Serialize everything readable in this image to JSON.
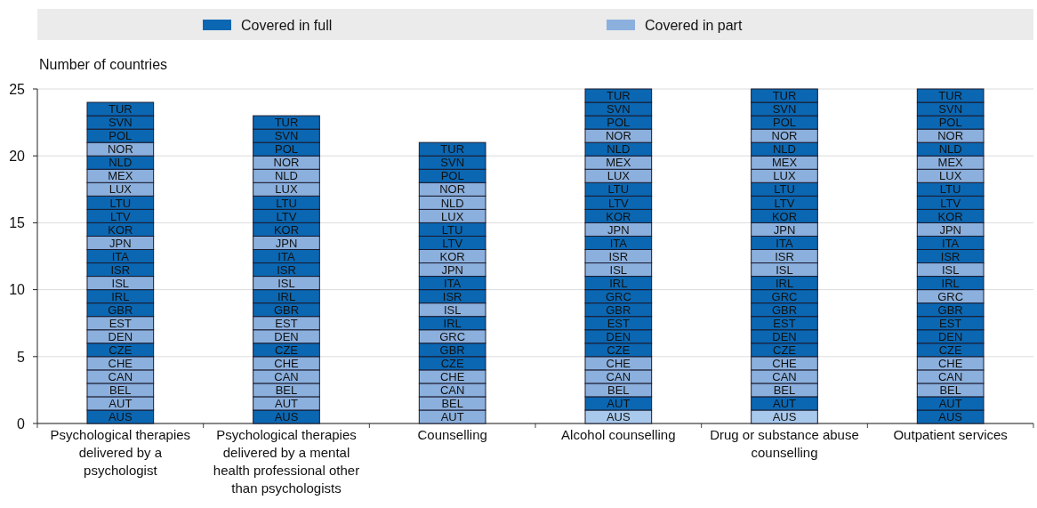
{
  "chart_data": {
    "type": "bar",
    "stacked": true,
    "ylabel": "Number of countries",
    "legend": "top",
    "grid": "y",
    "ylim": [
      0,
      25
    ],
    "yticks": [
      0,
      5,
      10,
      15,
      20,
      25
    ],
    "categories": [
      "Psychological therapies delivered by a psychologist",
      "Psychological therapies delivered by a mental health professional other than psychologists",
      "Counselling",
      "Alcohol counselling",
      "Drug or substance abuse counselling",
      "Outpatient services"
    ],
    "series": [
      {
        "name": "Covered in full",
        "color": "#0b67b2",
        "values": [
          null,
          null,
          null,
          null,
          null,
          null
        ]
      },
      {
        "name": "Covered in part",
        "color": "#8cb0dd",
        "values": [
          null,
          null,
          null,
          null,
          null,
          null
        ]
      },
      {
        "values": [
          1,
          1,
          1,
          1,
          1,
          1
        ],
        "value_labels": [
          "AUS",
          "AUS",
          "AUT",
          "AUS",
          "AUS",
          "AUS"
        ],
        "colors": [
          "#0b67b2",
          "#0b67b2",
          "#8cb0dd",
          "#a9c9ec",
          "#a9c9ec",
          "#0b67b2"
        ]
      },
      {
        "values": [
          1,
          1,
          1,
          1,
          1,
          1
        ],
        "value_labels": [
          "AUT",
          "AUT",
          "BEL",
          "AUT",
          "AUT",
          "AUT"
        ],
        "colors": [
          "#8cb0dd",
          "#8cb0dd",
          "#8cb0dd",
          "#0b67b2",
          "#0b67b2",
          "#0b67b2"
        ]
      },
      {
        "values": [
          1,
          1,
          1,
          1,
          1,
          1
        ],
        "value_labels": [
          "BEL",
          "BEL",
          "CAN",
          "BEL",
          "BEL",
          "BEL"
        ],
        "colors": [
          "#8cb0dd",
          "#8cb0dd",
          "#8cb0dd",
          "#8cb0dd",
          "#8cb0dd",
          "#8cb0dd"
        ]
      },
      {
        "values": [
          1,
          1,
          1,
          1,
          1,
          1
        ],
        "value_labels": [
          "CAN",
          "CAN",
          "CHE",
          "CAN",
          "CAN",
          "CAN"
        ],
        "colors": [
          "#8cb0dd",
          "#8cb0dd",
          "#8cb0dd",
          "#8cb0dd",
          "#8cb0dd",
          "#8cb0dd"
        ]
      },
      {
        "values": [
          1,
          1,
          1,
          1,
          1,
          1
        ],
        "value_labels": [
          "CHE",
          "CHE",
          "CZE",
          "CHE",
          "CHE",
          "CHE"
        ],
        "colors": [
          "#8cb0dd",
          "#8cb0dd",
          "#0b67b2",
          "#8cb0dd",
          "#8cb0dd",
          "#8cb0dd"
        ]
      },
      {
        "values": [
          1,
          1,
          1,
          1,
          1,
          1
        ],
        "value_labels": [
          "CZE",
          "CZE",
          "GBR",
          "CZE",
          "CZE",
          "CZE"
        ],
        "colors": [
          "#0b67b2",
          "#0b67b2",
          "#0b67b2",
          "#0b67b2",
          "#0b67b2",
          "#0b67b2"
        ]
      },
      {
        "values": [
          1,
          1,
          1,
          1,
          1,
          1
        ],
        "value_labels": [
          "DEN",
          "DEN",
          "GRC",
          "DEN",
          "DEN",
          "DEN"
        ],
        "colors": [
          "#8cb0dd",
          "#8cb0dd",
          "#8cb0dd",
          "#0b67b2",
          "#0b67b2",
          "#0b67b2"
        ]
      },
      {
        "values": [
          1,
          1,
          1,
          1,
          1,
          1
        ],
        "value_labels": [
          "EST",
          "EST",
          "IRL",
          "EST",
          "EST",
          "EST"
        ],
        "colors": [
          "#8cb0dd",
          "#8cb0dd",
          "#0b67b2",
          "#0b67b2",
          "#0b67b2",
          "#0b67b2"
        ]
      },
      {
        "values": [
          1,
          1,
          1,
          1,
          1,
          1
        ],
        "value_labels": [
          "GBR",
          "GBR",
          "ISL",
          "GBR",
          "GBR",
          "GBR"
        ],
        "colors": [
          "#0b67b2",
          "#0b67b2",
          "#8cb0dd",
          "#0b67b2",
          "#0b67b2",
          "#0b67b2"
        ]
      },
      {
        "values": [
          1,
          1,
          1,
          1,
          1,
          1
        ],
        "value_labels": [
          "IRL",
          "IRL",
          "ISR",
          "GRC",
          "GRC",
          "GRC"
        ],
        "colors": [
          "#0b67b2",
          "#0b67b2",
          "#0b67b2",
          "#0b67b2",
          "#0b67b2",
          "#8cb0dd"
        ]
      },
      {
        "values": [
          1,
          1,
          1,
          1,
          1,
          1
        ],
        "value_labels": [
          "ISL",
          "ISL",
          "ITA",
          "IRL",
          "IRL",
          "IRL"
        ],
        "colors": [
          "#8cb0dd",
          "#8cb0dd",
          "#0b67b2",
          "#0b67b2",
          "#0b67b2",
          "#0b67b2"
        ]
      },
      {
        "values": [
          1,
          1,
          1,
          1,
          1,
          1
        ],
        "value_labels": [
          "ISR",
          "ISR",
          "JPN",
          "ISL",
          "ISL",
          "ISL"
        ],
        "colors": [
          "#0b67b2",
          "#0b67b2",
          "#8cb0dd",
          "#8cb0dd",
          "#8cb0dd",
          "#8cb0dd"
        ]
      },
      {
        "values": [
          1,
          1,
          1,
          1,
          1,
          1
        ],
        "value_labels": [
          "ITA",
          "ITA",
          "KOR",
          "ISR",
          "ISR",
          "ISR"
        ],
        "colors": [
          "#0b67b2",
          "#0b67b2",
          "#8cb0dd",
          "#8cb0dd",
          "#8cb0dd",
          "#0b67b2"
        ]
      },
      {
        "values": [
          1,
          1,
          1,
          1,
          1,
          1
        ],
        "value_labels": [
          "JPN",
          "JPN",
          "LTV",
          "ITA",
          "ITA",
          "ITA"
        ],
        "colors": [
          "#8cb0dd",
          "#8cb0dd",
          "#0b67b2",
          "#0b67b2",
          "#0b67b2",
          "#0b67b2"
        ]
      },
      {
        "values": [
          1,
          1,
          1,
          1,
          1,
          1
        ],
        "value_labels": [
          "KOR",
          "KOR",
          "LTU",
          "JPN",
          "JPN",
          "JPN"
        ],
        "colors": [
          "#0b67b2",
          "#0b67b2",
          "#0b67b2",
          "#8cb0dd",
          "#8cb0dd",
          "#8cb0dd"
        ]
      },
      {
        "values": [
          1,
          1,
          1,
          1,
          1,
          1
        ],
        "value_labels": [
          "LTV",
          "LTV",
          "LUX",
          "KOR",
          "KOR",
          "KOR"
        ],
        "colors": [
          "#0b67b2",
          "#0b67b2",
          "#8cb0dd",
          "#0b67b2",
          "#0b67b2",
          "#0b67b2"
        ]
      },
      {
        "values": [
          1,
          1,
          1,
          1,
          1,
          1
        ],
        "value_labels": [
          "LTU",
          "LTU",
          "NLD",
          "LTV",
          "LTV",
          "LTV"
        ],
        "colors": [
          "#0b67b2",
          "#0b67b2",
          "#8cb0dd",
          "#0b67b2",
          "#0b67b2",
          "#0b67b2"
        ]
      },
      {
        "values": [
          1,
          1,
          1,
          1,
          1,
          1
        ],
        "value_labels": [
          "LUX",
          "LUX",
          "NOR",
          "LTU",
          "LTU",
          "LTU"
        ],
        "colors": [
          "#8cb0dd",
          "#8cb0dd",
          "#8cb0dd",
          "#0b67b2",
          "#0b67b2",
          "#0b67b2"
        ]
      },
      {
        "values": [
          1,
          1,
          1,
          1,
          1,
          1
        ],
        "value_labels": [
          "MEX",
          "NLD",
          "POL",
          "LUX",
          "LUX",
          "LUX"
        ],
        "colors": [
          "#8cb0dd",
          "#8cb0dd",
          "#0b67b2",
          "#8cb0dd",
          "#8cb0dd",
          "#8cb0dd"
        ]
      },
      {
        "values": [
          1,
          1,
          1,
          1,
          1,
          1
        ],
        "value_labels": [
          "NLD",
          "NOR",
          "SVN",
          "MEX",
          "MEX",
          "MEX"
        ],
        "colors": [
          "#0b67b2",
          "#8cb0dd",
          "#0b67b2",
          "#8cb0dd",
          "#8cb0dd",
          "#8cb0dd"
        ]
      },
      {
        "values": [
          1,
          1,
          1,
          1,
          1,
          1
        ],
        "value_labels": [
          "NOR",
          "POL",
          "TUR",
          "NLD",
          "NLD",
          "NLD"
        ],
        "colors": [
          "#8cb0dd",
          "#0b67b2",
          "#0b67b2",
          "#0b67b2",
          "#0b67b2",
          "#0b67b2"
        ]
      },
      {
        "values": [
          1,
          1,
          null,
          1,
          1,
          1
        ],
        "value_labels": [
          "POL",
          "SVN",
          null,
          "NOR",
          "NOR",
          "NOR"
        ],
        "colors": [
          "#0b67b2",
          "#0b67b2",
          null,
          "#8cb0dd",
          "#8cb0dd",
          "#8cb0dd"
        ]
      },
      {
        "values": [
          1,
          1,
          null,
          1,
          1,
          1
        ],
        "value_labels": [
          "SVN",
          "TUR",
          null,
          "POL",
          "POL",
          "POL"
        ],
        "colors": [
          "#0b67b2",
          "#0b67b2",
          null,
          "#0b67b2",
          "#0b67b2",
          "#0b67b2"
        ]
      },
      {
        "values": [
          1,
          null,
          null,
          1,
          1,
          1
        ],
        "value_labels": [
          "TUR",
          null,
          null,
          "SVN",
          "SVN",
          "SVN"
        ],
        "colors": [
          "#0b67b2",
          null,
          null,
          "#0b67b2",
          "#0b67b2",
          "#0b67b2"
        ]
      },
      {
        "values": [
          null,
          null,
          null,
          1,
          1,
          1
        ],
        "value_labels": [
          null,
          null,
          null,
          "TUR",
          "TUR",
          "TUR"
        ],
        "colors": [
          null,
          null,
          null,
          "#0b67b2",
          "#0b67b2",
          "#0b67b2"
        ]
      }
    ]
  }
}
